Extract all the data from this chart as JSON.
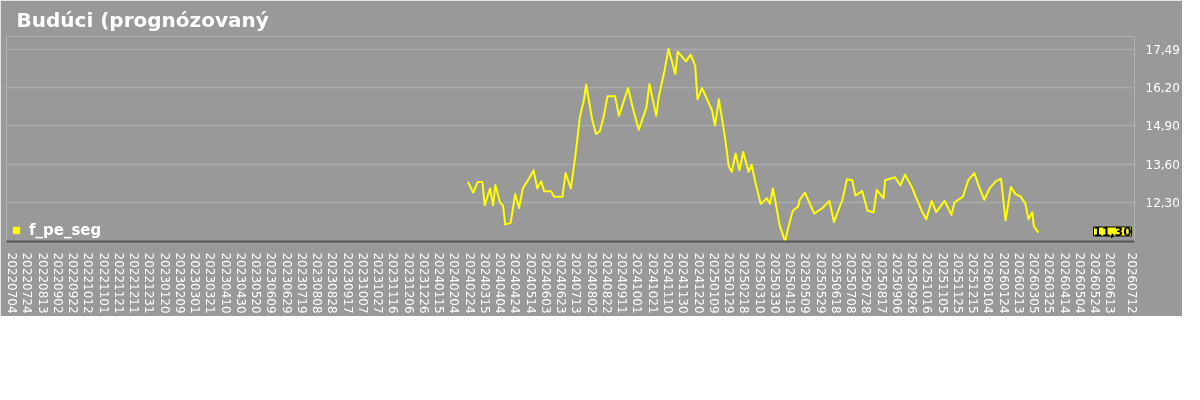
{
  "chart_data": {
    "type": "line",
    "title": "Budúci (prognózovaný",
    "x": [
      "2024-02-21",
      "2024-02-28",
      "2024-03-05",
      "2024-03-11",
      "2024-03-14",
      "2024-03-21",
      "2024-03-25",
      "2024-03-28",
      "2024-04-03",
      "2024-04-07",
      "2024-04-10",
      "2024-04-17",
      "2024-04-23",
      "2024-04-28",
      "2024-05-03",
      "2024-05-11",
      "2024-05-17",
      "2024-05-22",
      "2024-05-27",
      "2024-05-31",
      "2024-06-09",
      "2024-06-13",
      "2024-06-24",
      "2024-06-28",
      "2024-07-05",
      "2024-07-11",
      "2024-07-17",
      "2024-07-22",
      "2024-07-25",
      "2024-08-02",
      "2024-08-07",
      "2024-08-12",
      "2024-08-17",
      "2024-08-22",
      "2024-09-01",
      "2024-09-06",
      "2024-09-18",
      "2024-09-25",
      "2024-10-02",
      "2024-10-12",
      "2024-10-16",
      "2024-10-25",
      "2024-10-28",
      "2024-11-05",
      "2024-11-10",
      "2024-11-19",
      "2024-11-22",
      "2024-12-03",
      "2024-12-09",
      "2024-12-15",
      "2024-12-18",
      "2024-12-24",
      "2025-01-06",
      "2025-01-10",
      "2025-01-15",
      "2025-01-23",
      "2025-01-28",
      "2025-02-01",
      "2025-02-06",
      "2025-02-11",
      "2025-02-16",
      "2025-02-23",
      "2025-02-27",
      "2025-03-04",
      "2025-03-11",
      "2025-03-19",
      "2025-03-23",
      "2025-03-27",
      "2025-04-05",
      "2025-04-12",
      "2025-04-16",
      "2025-04-22",
      "2025-04-29",
      "2025-05-01",
      "2025-05-08",
      "2025-05-20",
      "2025-05-31",
      "2025-06-09",
      "2025-06-15",
      "2025-06-26",
      "2025-07-02",
      "2025-07-09",
      "2025-07-13",
      "2025-07-22",
      "2025-07-29",
      "2025-08-06",
      "2025-08-10",
      "2025-08-19",
      "2025-08-21",
      "2025-09-03",
      "2025-09-10",
      "2025-09-16",
      "2025-09-25",
      "2025-10-01",
      "2025-10-08",
      "2025-10-14",
      "2025-10-21",
      "2025-10-27",
      "2025-11-07",
      "2025-11-16",
      "2025-11-20",
      "2025-12-01",
      "2025-12-08",
      "2025-12-16",
      "2025-12-23",
      "2025-12-29",
      "2026-01-05",
      "2026-01-13",
      "2026-01-20",
      "2026-01-26",
      "2026-02-02",
      "2026-02-08",
      "2026-02-15",
      "2026-02-21",
      "2026-02-25",
      "2026-03-02",
      "2026-03-04",
      "2026-03-10"
    ],
    "series": [
      {
        "name": "f_pe_seg",
        "color": "#ffff00",
        "values": [
          13.01,
          12.65,
          13.01,
          13.01,
          12.22,
          12.79,
          12.22,
          12.91,
          12.32,
          12.22,
          11.57,
          11.63,
          12.6,
          12.13,
          12.79,
          13.12,
          13.4,
          12.79,
          13.03,
          12.7,
          12.7,
          12.51,
          12.51,
          13.31,
          12.79,
          13.92,
          15.24,
          15.76,
          16.3,
          15.1,
          14.63,
          14.72,
          15.21,
          15.9,
          15.9,
          15.24,
          16.18,
          15.43,
          14.77,
          15.52,
          16.32,
          15.24,
          15.85,
          16.79,
          17.5,
          16.65,
          17.41,
          17.08,
          17.31,
          16.93,
          15.8,
          16.18,
          15.43,
          14.91,
          15.8,
          14.53,
          13.54,
          13.35,
          13.97,
          13.4,
          14.02,
          13.35,
          13.59,
          12.98,
          12.27,
          12.46,
          12.27,
          12.79,
          11.52,
          11.0,
          11.47,
          12.04,
          12.18,
          12.41,
          12.65,
          11.94,
          12.13,
          12.37,
          11.66,
          12.41,
          13.1,
          13.07,
          12.55,
          12.7,
          12.04,
          11.99,
          12.74,
          12.46,
          13.07,
          13.17,
          12.89,
          13.26,
          12.84,
          12.46,
          12.04,
          11.75,
          12.37,
          11.99,
          12.37,
          11.9,
          12.32,
          12.51,
          13.07,
          13.31,
          12.79,
          12.41,
          12.79,
          13.03,
          13.12,
          11.71,
          12.84,
          12.6,
          12.51,
          12.27,
          11.75,
          11.99,
          11.52,
          11.3
        ]
      }
    ],
    "xlim": [
      "2022-06-26",
      "2026-07-14"
    ],
    "xticks": [
      {
        "value": "2022-07-04",
        "label": "20220704"
      },
      {
        "value": "2022-07-24",
        "label": "20220724"
      },
      {
        "value": "2022-08-13",
        "label": "20220813"
      },
      {
        "value": "2022-09-02",
        "label": "20220902"
      },
      {
        "value": "2022-09-22",
        "label": "20220922"
      },
      {
        "value": "2022-10-12",
        "label": "20221012"
      },
      {
        "value": "2022-11-01",
        "label": "20221101"
      },
      {
        "value": "2022-11-21",
        "label": "20221121"
      },
      {
        "value": "2022-12-11",
        "label": "20221211"
      },
      {
        "value": "2022-12-31",
        "label": "20221231"
      },
      {
        "value": "2023-01-20",
        "label": "20230120"
      },
      {
        "value": "2023-02-09",
        "label": "20230209"
      },
      {
        "value": "2023-03-01",
        "label": "20230301"
      },
      {
        "value": "2023-03-21",
        "label": "20230321"
      },
      {
        "value": "2023-04-10",
        "label": "20230410"
      },
      {
        "value": "2023-04-30",
        "label": "20230430"
      },
      {
        "value": "2023-05-20",
        "label": "20230520"
      },
      {
        "value": "2023-06-09",
        "label": "20230609"
      },
      {
        "value": "2023-06-29",
        "label": "20230629"
      },
      {
        "value": "2023-07-19",
        "label": "20230719"
      },
      {
        "value": "2023-08-08",
        "label": "20230808"
      },
      {
        "value": "2023-08-28",
        "label": "20230828"
      },
      {
        "value": "2023-09-17",
        "label": "20230917"
      },
      {
        "value": "2023-10-07",
        "label": "20231007"
      },
      {
        "value": "2023-10-27",
        "label": "20231027"
      },
      {
        "value": "2023-11-16",
        "label": "20231116"
      },
      {
        "value": "2023-12-06",
        "label": "20231206"
      },
      {
        "value": "2023-12-26",
        "label": "20231226"
      },
      {
        "value": "2024-01-15",
        "label": "20240115"
      },
      {
        "value": "2024-02-04",
        "label": "20240204"
      },
      {
        "value": "2024-02-24",
        "label": "20240224"
      },
      {
        "value": "2024-03-15",
        "label": "20240315"
      },
      {
        "value": "2024-04-04",
        "label": "20240404"
      },
      {
        "value": "2024-04-24",
        "label": "20240424"
      },
      {
        "value": "2024-05-14",
        "label": "20240514"
      },
      {
        "value": "2024-06-03",
        "label": "20240603"
      },
      {
        "value": "2024-06-23",
        "label": "20240623"
      },
      {
        "value": "2024-07-13",
        "label": "20240713"
      },
      {
        "value": "2024-08-02",
        "label": "20240802"
      },
      {
        "value": "2024-08-22",
        "label": "20240822"
      },
      {
        "value": "2024-09-11",
        "label": "20240911"
      },
      {
        "value": "2024-10-01",
        "label": "20241001"
      },
      {
        "value": "2024-10-21",
        "label": "20241021"
      },
      {
        "value": "2024-11-10",
        "label": "20241110"
      },
      {
        "value": "2024-11-30",
        "label": "20241130"
      },
      {
        "value": "2024-12-20",
        "label": "20241220"
      },
      {
        "value": "2025-01-09",
        "label": "20250109"
      },
      {
        "value": "2025-01-29",
        "label": "20250129"
      },
      {
        "value": "2025-02-18",
        "label": "20250218"
      },
      {
        "value": "2025-03-10",
        "label": "20250310"
      },
      {
        "value": "2025-03-30",
        "label": "20250330"
      },
      {
        "value": "2025-04-19",
        "label": "20250419"
      },
      {
        "value": "2025-05-09",
        "label": "20250509"
      },
      {
        "value": "2025-05-29",
        "label": "20250529"
      },
      {
        "value": "2025-06-18",
        "label": "20250618"
      },
      {
        "value": "2025-07-08",
        "label": "20250708"
      },
      {
        "value": "2025-07-28",
        "label": "20250728"
      },
      {
        "value": "2025-08-17",
        "label": "20250817"
      },
      {
        "value": "2025-09-06",
        "label": "20250906"
      },
      {
        "value": "2025-09-26",
        "label": "20250926"
      },
      {
        "value": "2025-10-16",
        "label": "20251016"
      },
      {
        "value": "2025-11-05",
        "label": "20251105"
      },
      {
        "value": "2025-11-25",
        "label": "20251125"
      },
      {
        "value": "2025-12-15",
        "label": "20251215"
      },
      {
        "value": "2026-01-04",
        "label": "20260104"
      },
      {
        "value": "2026-01-24",
        "label": "20260124"
      },
      {
        "value": "2026-02-13",
        "label": "20260213"
      },
      {
        "value": "2026-03-05",
        "label": "20260305"
      },
      {
        "value": "2026-03-25",
        "label": "20260325"
      },
      {
        "value": "2026-04-14",
        "label": "20260414"
      },
      {
        "value": "2026-05-04",
        "label": "20260504"
      },
      {
        "value": "2026-05-24",
        "label": "20260524"
      },
      {
        "value": "2026-06-13",
        "label": "20260613"
      },
      {
        "value": "2026-07-12",
        "label": "20260712"
      }
    ],
    "ylim": [
      11.0,
      17.92
    ],
    "yticks": [
      {
        "value": 12.3,
        "label": "12,30"
      },
      {
        "value": 13.6,
        "label": "13,60"
      },
      {
        "value": 14.9,
        "label": "14,90"
      },
      {
        "value": 16.2,
        "label": "16,20"
      },
      {
        "value": 17.49,
        "label": "17,49"
      }
    ],
    "annotations": [
      "11,30"
    ],
    "grid": "y",
    "legend": "bottom left",
    "marker": "none",
    "line_style": "solid"
  }
}
